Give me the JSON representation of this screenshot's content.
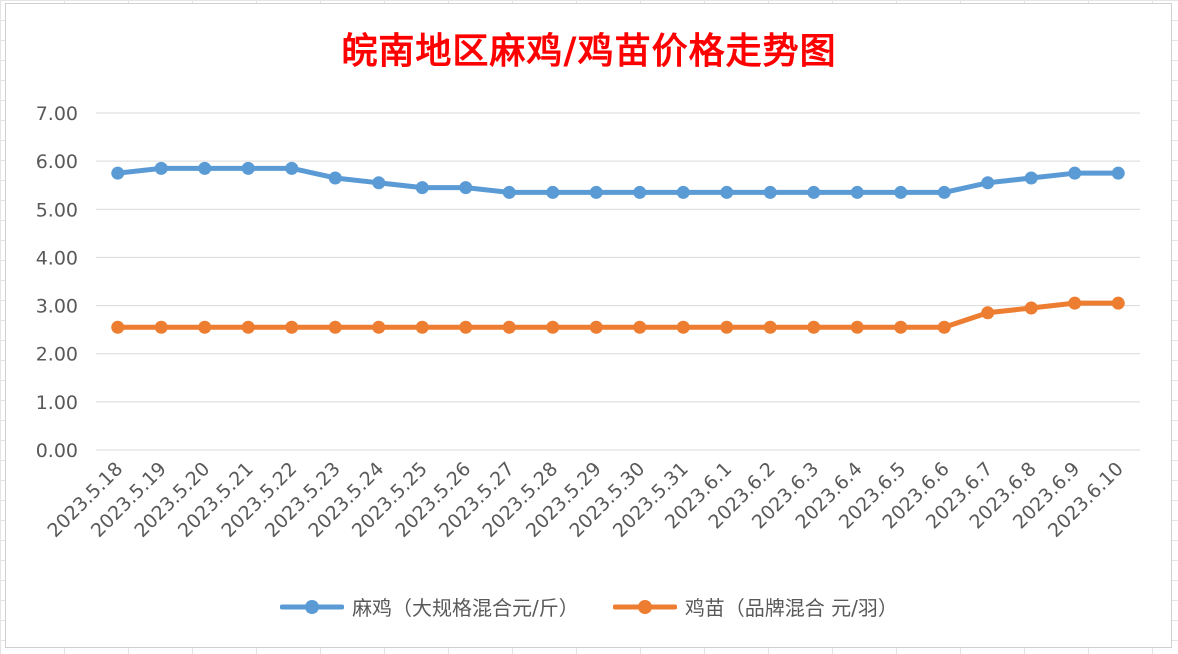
{
  "chart_data": {
    "type": "line",
    "title": "皖南地区麻鸡/鸡苗价格走势图",
    "categories": [
      "2023.5.18",
      "2023.5.19",
      "2023.5.20",
      "2023.5.21",
      "2023.5.22",
      "2023.5.23",
      "2023.5.24",
      "2023.5.25",
      "2023.5.26",
      "2023.5.27",
      "2023.5.28",
      "2023.5.29",
      "2023.5.30",
      "2023.5.31",
      "2023.6.1",
      "2023.6.2",
      "2023.6.3",
      "2023.6.4",
      "2023.6.5",
      "2023.6.6",
      "2023.6.7",
      "2023.6.8",
      "2023.6.9",
      "2023.6.10"
    ],
    "series": [
      {
        "name": "麻鸡（大规格混合元/斤）",
        "color": "#5b9bd5",
        "values": [
          5.75,
          5.85,
          5.85,
          5.85,
          5.85,
          5.65,
          5.55,
          5.45,
          5.45,
          5.35,
          5.35,
          5.35,
          5.35,
          5.35,
          5.35,
          5.35,
          5.35,
          5.35,
          5.35,
          5.35,
          5.55,
          5.65,
          5.75,
          5.75
        ]
      },
      {
        "name": "鸡苗（品牌混合 元/羽）",
        "color": "#ed7d31",
        "values": [
          2.55,
          2.55,
          2.55,
          2.55,
          2.55,
          2.55,
          2.55,
          2.55,
          2.55,
          2.55,
          2.55,
          2.55,
          2.55,
          2.55,
          2.55,
          2.55,
          2.55,
          2.55,
          2.55,
          2.55,
          2.85,
          2.95,
          3.05,
          3.05
        ]
      }
    ],
    "ylim": [
      0,
      7
    ],
    "yticks": [
      "0.00",
      "1.00",
      "2.00",
      "3.00",
      "4.00",
      "5.00",
      "6.00",
      "7.00"
    ],
    "grid": true,
    "legend_position": "bottom",
    "xlabel": "",
    "ylabel": ""
  }
}
